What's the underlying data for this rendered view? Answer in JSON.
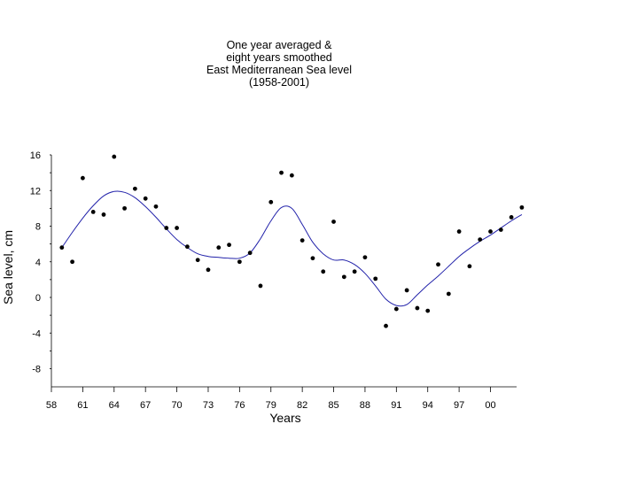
{
  "chart_data": {
    "type": "scatter",
    "title_lines": [
      "One year averaged &",
      "eight years smoothed",
      "East Mediterranean Sea level",
      "(1958-2001)"
    ],
    "xlabel": "Years",
    "ylabel": "Sea level, cm",
    "xlim": [
      1958,
      2002.5
    ],
    "ylim": [
      -10,
      17
    ],
    "x_ticks": [
      {
        "year": 1958,
        "label": "58"
      },
      {
        "year": 1961,
        "label": "61"
      },
      {
        "year": 1964,
        "label": "64"
      },
      {
        "year": 1967,
        "label": "67"
      },
      {
        "year": 1970,
        "label": "70"
      },
      {
        "year": 1973,
        "label": "73"
      },
      {
        "year": 1976,
        "label": "76"
      },
      {
        "year": 1979,
        "label": "79"
      },
      {
        "year": 1982,
        "label": "82"
      },
      {
        "year": 1985,
        "label": "85"
      },
      {
        "year": 1988,
        "label": "88"
      },
      {
        "year": 1991,
        "label": "91"
      },
      {
        "year": 1994,
        "label": "94"
      },
      {
        "year": 1997,
        "label": "97"
      },
      {
        "year": 2000,
        "label": "00"
      }
    ],
    "y_ticks": [
      {
        "value": 16,
        "label": "16"
      },
      {
        "value": 12,
        "label": "12"
      },
      {
        "value": 8,
        "label": "8"
      },
      {
        "value": 4,
        "label": "4"
      },
      {
        "value": 0,
        "label": "0"
      },
      {
        "value": -4,
        "label": "-4"
      },
      {
        "value": -8,
        "label": "-8"
      }
    ],
    "series": [
      {
        "name": "One year averaged",
        "style": "points",
        "color": "#000000",
        "x": [
          1959,
          1960,
          1961,
          1962,
          1963,
          1964,
          1965,
          1966,
          1967,
          1968,
          1969,
          1970,
          1971,
          1972,
          1973,
          1974,
          1975,
          1976,
          1977,
          1978,
          1979,
          1980,
          1981,
          1982,
          1983,
          1984,
          1985,
          1986,
          1987,
          1988,
          1989,
          1990,
          1991,
          1992,
          1993,
          1994,
          1995,
          1996,
          1997,
          1998,
          1999,
          2000,
          2001,
          2002,
          2003
        ],
        "y": [
          5.6,
          4.0,
          13.4,
          9.6,
          9.3,
          15.8,
          10.0,
          12.2,
          11.1,
          10.2,
          7.8,
          7.8,
          5.7,
          4.2,
          3.1,
          5.6,
          5.9,
          4.0,
          5.0,
          1.3,
          10.7,
          14.0,
          13.7,
          6.4,
          4.4,
          2.9,
          8.5,
          2.3,
          2.9,
          4.5,
          2.1,
          -3.2,
          -1.3,
          0.8,
          -1.2,
          -1.5,
          3.7,
          0.4,
          7.4,
          3.5,
          6.5,
          7.4,
          7.6,
          9.0,
          10.1
        ]
      },
      {
        "name": "Eight years smoothed",
        "style": "line",
        "color": "#2222aa",
        "x": [
          1959,
          1960,
          1961,
          1962,
          1963,
          1964,
          1965,
          1966,
          1967,
          1968,
          1969,
          1970,
          1971,
          1972,
          1973,
          1974,
          1975,
          1976,
          1977,
          1978,
          1979,
          1980,
          1981,
          1982,
          1983,
          1984,
          1985,
          1986,
          1987,
          1988,
          1989,
          1990,
          1991,
          1992,
          1993,
          1994,
          1995,
          1996,
          1997,
          1998,
          1999,
          2000,
          2001,
          2002,
          2003
        ],
        "y": [
          5.6,
          7.3,
          8.9,
          10.3,
          11.4,
          11.9,
          11.8,
          11.2,
          10.2,
          9.0,
          7.7,
          6.5,
          5.6,
          4.9,
          4.6,
          4.5,
          4.4,
          4.4,
          5.0,
          6.6,
          8.6,
          10.1,
          10.0,
          8.2,
          6.2,
          4.9,
          4.2,
          4.2,
          3.7,
          2.7,
          1.3,
          -0.2,
          -0.9,
          -0.8,
          0.3,
          1.4,
          2.4,
          3.5,
          4.6,
          5.5,
          6.3,
          7.0,
          7.8,
          8.6,
          9.3
        ]
      }
    ]
  }
}
